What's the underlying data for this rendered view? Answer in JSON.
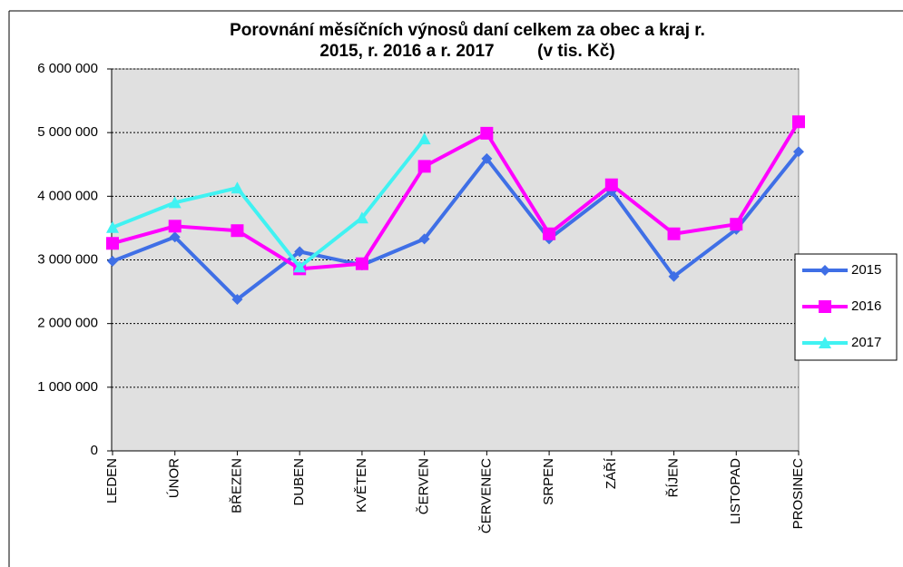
{
  "chart_data": {
    "type": "line",
    "title_lines": [
      "Porovnání měsíčních výnosů daní celkem za obec a kraj r.",
      "2015, r. 2016 a r. 2017         (v tis. Kč)"
    ],
    "categories": [
      "LEDEN",
      "ÚNOR",
      "BŘEZEN",
      "DUBEN",
      "KVĚTEN",
      "ČERVEN",
      "ČERVENEC",
      "SRPEN",
      "ZÁŘÍ",
      "ŘÍJEN",
      "LISTOPAD",
      "PROSINEC"
    ],
    "series": [
      {
        "name": "2015",
        "color": "#3f6fe6",
        "marker": "diamond",
        "values": [
          2980000,
          3360000,
          2380000,
          3130000,
          2920000,
          3330000,
          4590000,
          3330000,
          4080000,
          2740000,
          3480000,
          4700000
        ]
      },
      {
        "name": "2016",
        "color": "#ff00ff",
        "marker": "square",
        "values": [
          3260000,
          3530000,
          3460000,
          2860000,
          2940000,
          4470000,
          4990000,
          3410000,
          4180000,
          3410000,
          3560000,
          5170000
        ]
      },
      {
        "name": "2017",
        "color": "#40f2f2",
        "marker": "triangle",
        "values": [
          3510000,
          3900000,
          4130000,
          2890000,
          3660000,
          4900000,
          null,
          null,
          null,
          null,
          null,
          null
        ]
      }
    ],
    "ylim": [
      0,
      6000000
    ],
    "yticks": [
      0,
      {
        "value": 1000000,
        "label": "1 000 000"
      },
      {
        "value": 2000000,
        "label": "2 000 000"
      },
      {
        "value": 3000000,
        "label": "3 000 000"
      },
      {
        "value": 4000000,
        "label": "4 000 000"
      },
      {
        "value": 5000000,
        "label": "5 000 000"
      },
      {
        "value": 6000000,
        "label": "6 000 000"
      }
    ],
    "grid": true,
    "legend": "right"
  }
}
